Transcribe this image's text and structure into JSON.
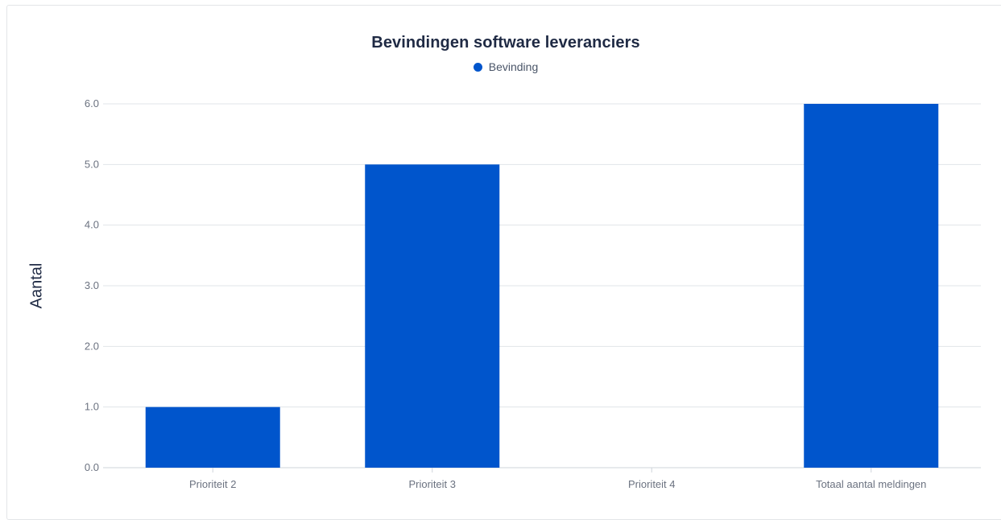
{
  "chart_data": {
    "type": "bar",
    "title": "Bevindingen software leveranciers",
    "xlabel": "",
    "ylabel": "Aantal",
    "categories": [
      "Prioriteit 2",
      "Prioriteit 3",
      "Prioriteit 4",
      "Totaal aantal meldingen"
    ],
    "series": [
      {
        "name": "Bevinding",
        "values": [
          1,
          5,
          0,
          6
        ],
        "color": "#0055cc"
      }
    ],
    "ylim": [
      0,
      6
    ],
    "yticks": [
      "0.0",
      "1.0",
      "2.0",
      "3.0",
      "4.0",
      "5.0",
      "6.0"
    ],
    "grid": true,
    "legend_position": "top-center"
  }
}
